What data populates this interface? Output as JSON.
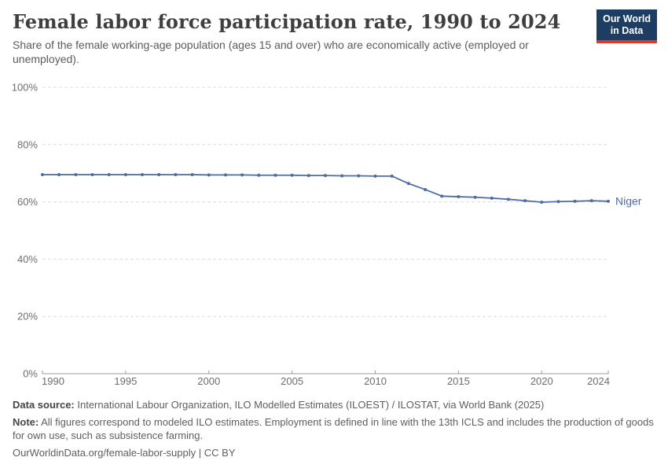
{
  "header": {
    "title": "Female labor force participation rate, 1990 to 2024",
    "subtitle": "Share of the female working-age population (ages 15 and over) who are economically active (employed or unemployed).",
    "logo": {
      "line1": "Our World",
      "line2": "in Data",
      "bg_color": "#1d3d63",
      "accent_color": "#d93a2b"
    }
  },
  "chart_data": {
    "type": "line",
    "title": "Female labor force participation rate, 1990 to 2024",
    "xlabel": "",
    "ylabel": "",
    "x": [
      1990,
      1991,
      1992,
      1993,
      1994,
      1995,
      1996,
      1997,
      1998,
      1999,
      2000,
      2001,
      2002,
      2003,
      2004,
      2005,
      2006,
      2007,
      2008,
      2009,
      2010,
      2011,
      2012,
      2013,
      2014,
      2015,
      2016,
      2017,
      2018,
      2019,
      2020,
      2021,
      2022,
      2023,
      2024
    ],
    "series": [
      {
        "name": "Niger",
        "color": "#4d6ca3",
        "values": [
          69.5,
          69.5,
          69.5,
          69.5,
          69.5,
          69.5,
          69.5,
          69.5,
          69.5,
          69.5,
          69.4,
          69.4,
          69.4,
          69.3,
          69.3,
          69.3,
          69.2,
          69.2,
          69.1,
          69.1,
          69.0,
          69.0,
          66.4,
          64.3,
          62.0,
          61.8,
          61.6,
          61.3,
          60.9,
          60.4,
          59.9,
          60.1,
          60.2,
          60.4,
          60.2
        ]
      }
    ],
    "xlim": [
      1990,
      2024
    ],
    "ylim": [
      0,
      100
    ],
    "xticks": [
      1990,
      1995,
      2000,
      2005,
      2010,
      2015,
      2020,
      2024
    ],
    "yticks": [
      0,
      20,
      40,
      60,
      80,
      100
    ],
    "ytick_suffix": "%",
    "grid": "horizontal-dashed",
    "legend": "end-of-line-label",
    "grid_color": "#dcdcdc",
    "axis_color": "#9c9c9c",
    "tick_label_color": "#6d6d6d"
  },
  "footer": {
    "source_label": "Data source:",
    "source_text": " International Labour Organization, ILO Modelled Estimates (ILOEST) / ILOSTAT, via World Bank (2025)",
    "note_label": "Note:",
    "note_text": " All figures correspond to modeled ILO estimates. Employment is defined in line with the 13th ICLS and includes the production of goods for own use, such as subsistence farming.",
    "link": "OurWorldinData.org/female-labor-supply",
    "separator": "|",
    "license": "CC BY"
  }
}
